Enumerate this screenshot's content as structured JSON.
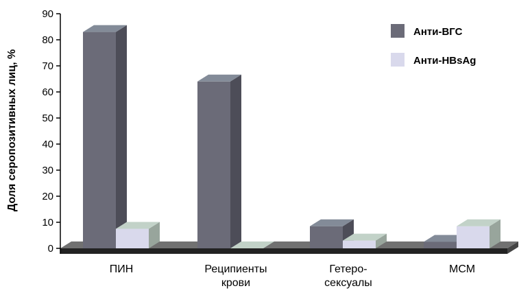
{
  "chart_data": {
    "type": "bar",
    "ylabel": "Доля серопозитивных лиц, %",
    "xlabel": "",
    "ylim": [
      0,
      90
    ],
    "yticks": [
      0,
      10,
      20,
      30,
      40,
      50,
      60,
      70,
      80,
      90
    ],
    "categories": [
      [
        "ПИН"
      ],
      [
        "Реципиенты",
        "крови"
      ],
      [
        "Гетеро-",
        "сексуалы"
      ],
      [
        "МСМ"
      ]
    ],
    "series": [
      {
        "name": "Анти-ВГС",
        "values": [
          83,
          64,
          8.5,
          2.5
        ]
      },
      {
        "name": "Анти-HBsAg",
        "values": [
          7.5,
          0,
          3,
          8.5
        ]
      }
    ],
    "legend_position": "top-right",
    "grid": false,
    "three_d": true
  },
  "colors": {
    "series_front": [
      "#6b6b78",
      "#d9d9ec"
    ],
    "series_top": [
      "#838b98",
      "#c2d2c8"
    ],
    "series_side": [
      "#4d4d58",
      "#98a59c"
    ],
    "floor_top": "#717171",
    "floor_front": "#222222",
    "axis": "#000000"
  }
}
